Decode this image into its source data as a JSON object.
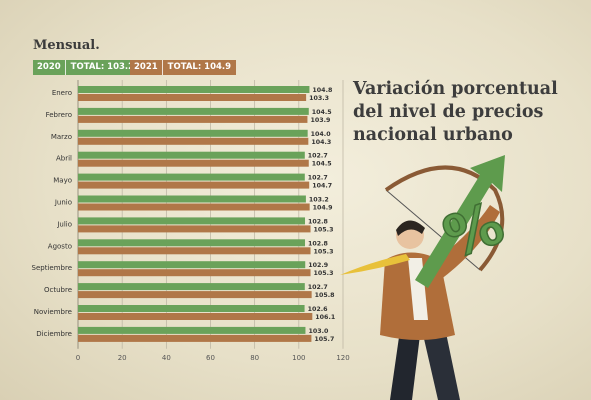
{
  "header": {
    "period_label": "Mensual.",
    "legend_2020_year": "2020",
    "legend_2020_total": "TOTAL: 103.2",
    "legend_2021_year": "2021",
    "legend_2021_total": "TOTAL: 104.9"
  },
  "title": {
    "line1": "Variación porcentual",
    "line2": "del nivel de precios",
    "line3": "nacional urbano"
  },
  "colors": {
    "series_2020": "#6aa25a",
    "series_2021": "#b07748",
    "arrow": "#5e9b4d"
  },
  "icons": {
    "illustration": "businessman-with-bow-and-percent-arrow-icon"
  },
  "chart_data": {
    "type": "bar",
    "orientation": "horizontal",
    "categories": [
      "Enero",
      "Febrero",
      "Marzo",
      "Abril",
      "Mayo",
      "Junio",
      "Julio",
      "Agosto",
      "Septiembre",
      "Octubre",
      "Noviembre",
      "Diciembre"
    ],
    "series": [
      {
        "name": "2020",
        "values": [
          104.8,
          104.5,
          104.0,
          102.7,
          102.7,
          103.2,
          102.8,
          102.8,
          102.9,
          102.7,
          102.6,
          103.0
        ],
        "labels": [
          "104.8",
          "104.5",
          "104.0",
          "102.7",
          "102.7",
          "103.2",
          "102.8",
          "102.8",
          "102.9",
          "102.7",
          "102.6",
          "103.0"
        ]
      },
      {
        "name": "2021",
        "values": [
          103.3,
          103.9,
          104.3,
          104.5,
          104.7,
          104.9,
          105.3,
          105.3,
          105.3,
          105.8,
          106.1,
          105.7
        ],
        "labels": [
          "103.3",
          "103.9",
          "104.3",
          "104.5",
          "104.7",
          "104.9",
          "105.3",
          "105.3",
          "105.3",
          "105.8",
          "106.1",
          "105.7"
        ]
      }
    ],
    "xlim": [
      0,
      120
    ],
    "xticks": [
      "0",
      "20",
      "40",
      "60",
      "80",
      "100",
      "120"
    ],
    "grid": true,
    "xlabel": "",
    "ylabel": ""
  }
}
